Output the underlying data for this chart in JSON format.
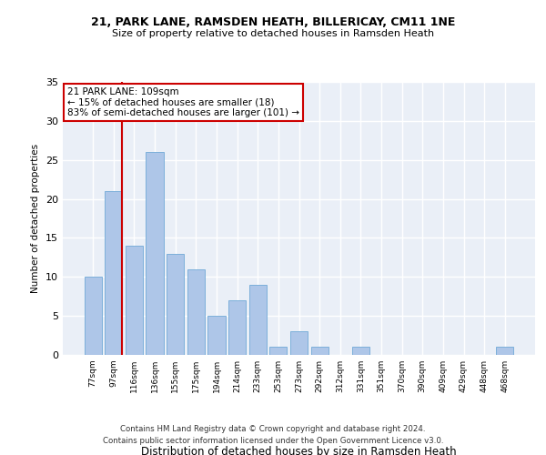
{
  "title1": "21, PARK LANE, RAMSDEN HEATH, BILLERICAY, CM11 1NE",
  "title2": "Size of property relative to detached houses in Ramsden Heath",
  "xlabel": "Distribution of detached houses by size in Ramsden Heath",
  "ylabel": "Number of detached properties",
  "categories": [
    "77sqm",
    "97sqm",
    "116sqm",
    "136sqm",
    "155sqm",
    "175sqm",
    "194sqm",
    "214sqm",
    "233sqm",
    "253sqm",
    "273sqm",
    "292sqm",
    "312sqm",
    "331sqm",
    "351sqm",
    "370sqm",
    "390sqm",
    "409sqm",
    "429sqm",
    "448sqm",
    "468sqm"
  ],
  "values": [
    10,
    21,
    14,
    26,
    13,
    11,
    5,
    7,
    9,
    1,
    3,
    1,
    0,
    1,
    0,
    0,
    0,
    0,
    0,
    0,
    1
  ],
  "bar_color": "#aec6e8",
  "bar_edge_color": "#6fa8d6",
  "vline_color": "#cc0000",
  "vline_x_index": 1,
  "annotation_text": "21 PARK LANE: 109sqm\n← 15% of detached houses are smaller (18)\n83% of semi-detached houses are larger (101) →",
  "annotation_box_color": "#ffffff",
  "annotation_box_edge": "#cc0000",
  "ylim": [
    0,
    35
  ],
  "yticks": [
    0,
    5,
    10,
    15,
    20,
    25,
    30,
    35
  ],
  "bg_color": "#eaeff7",
  "grid_color": "#ffffff",
  "footer1": "Contains HM Land Registry data © Crown copyright and database right 2024.",
  "footer2": "Contains public sector information licensed under the Open Government Licence v3.0."
}
